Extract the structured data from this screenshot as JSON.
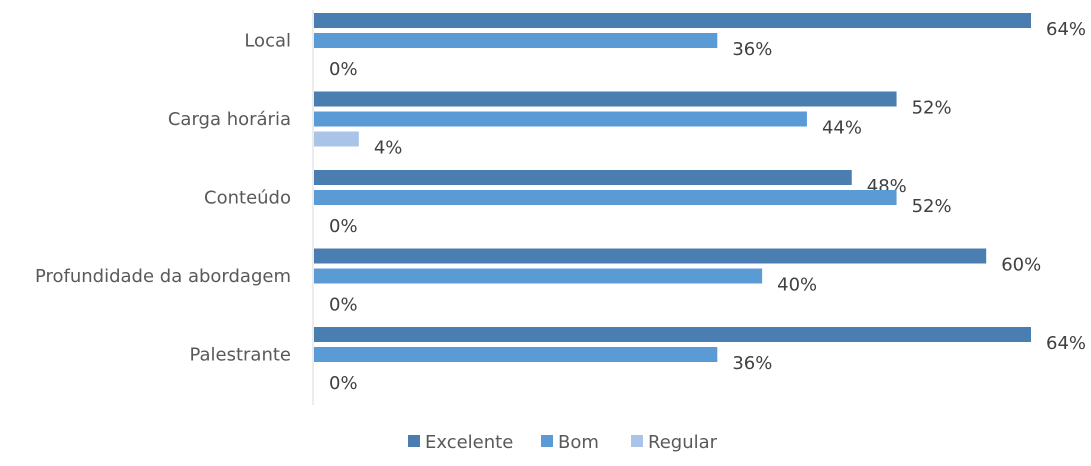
{
  "chart_data": {
    "type": "bar",
    "orientation": "horizontal",
    "categories": [
      "Local",
      "Carga horária",
      "Conteúdo",
      "Profundidade da abordagem",
      "Palestrante"
    ],
    "series": [
      {
        "name": "Excelente",
        "values": [
          64,
          52,
          48,
          60,
          64
        ],
        "color": "#4A7EB0"
      },
      {
        "name": "Bom",
        "values": [
          36,
          44,
          52,
          40,
          36
        ],
        "color": "#5B9BD5"
      },
      {
        "name": "Regular",
        "values": [
          0,
          4,
          0,
          0,
          0
        ],
        "color": "#A9C4E6"
      }
    ],
    "value_suffix": "%",
    "xlim": [
      0,
      64
    ],
    "legend_position": "bottom",
    "grid": false
  }
}
